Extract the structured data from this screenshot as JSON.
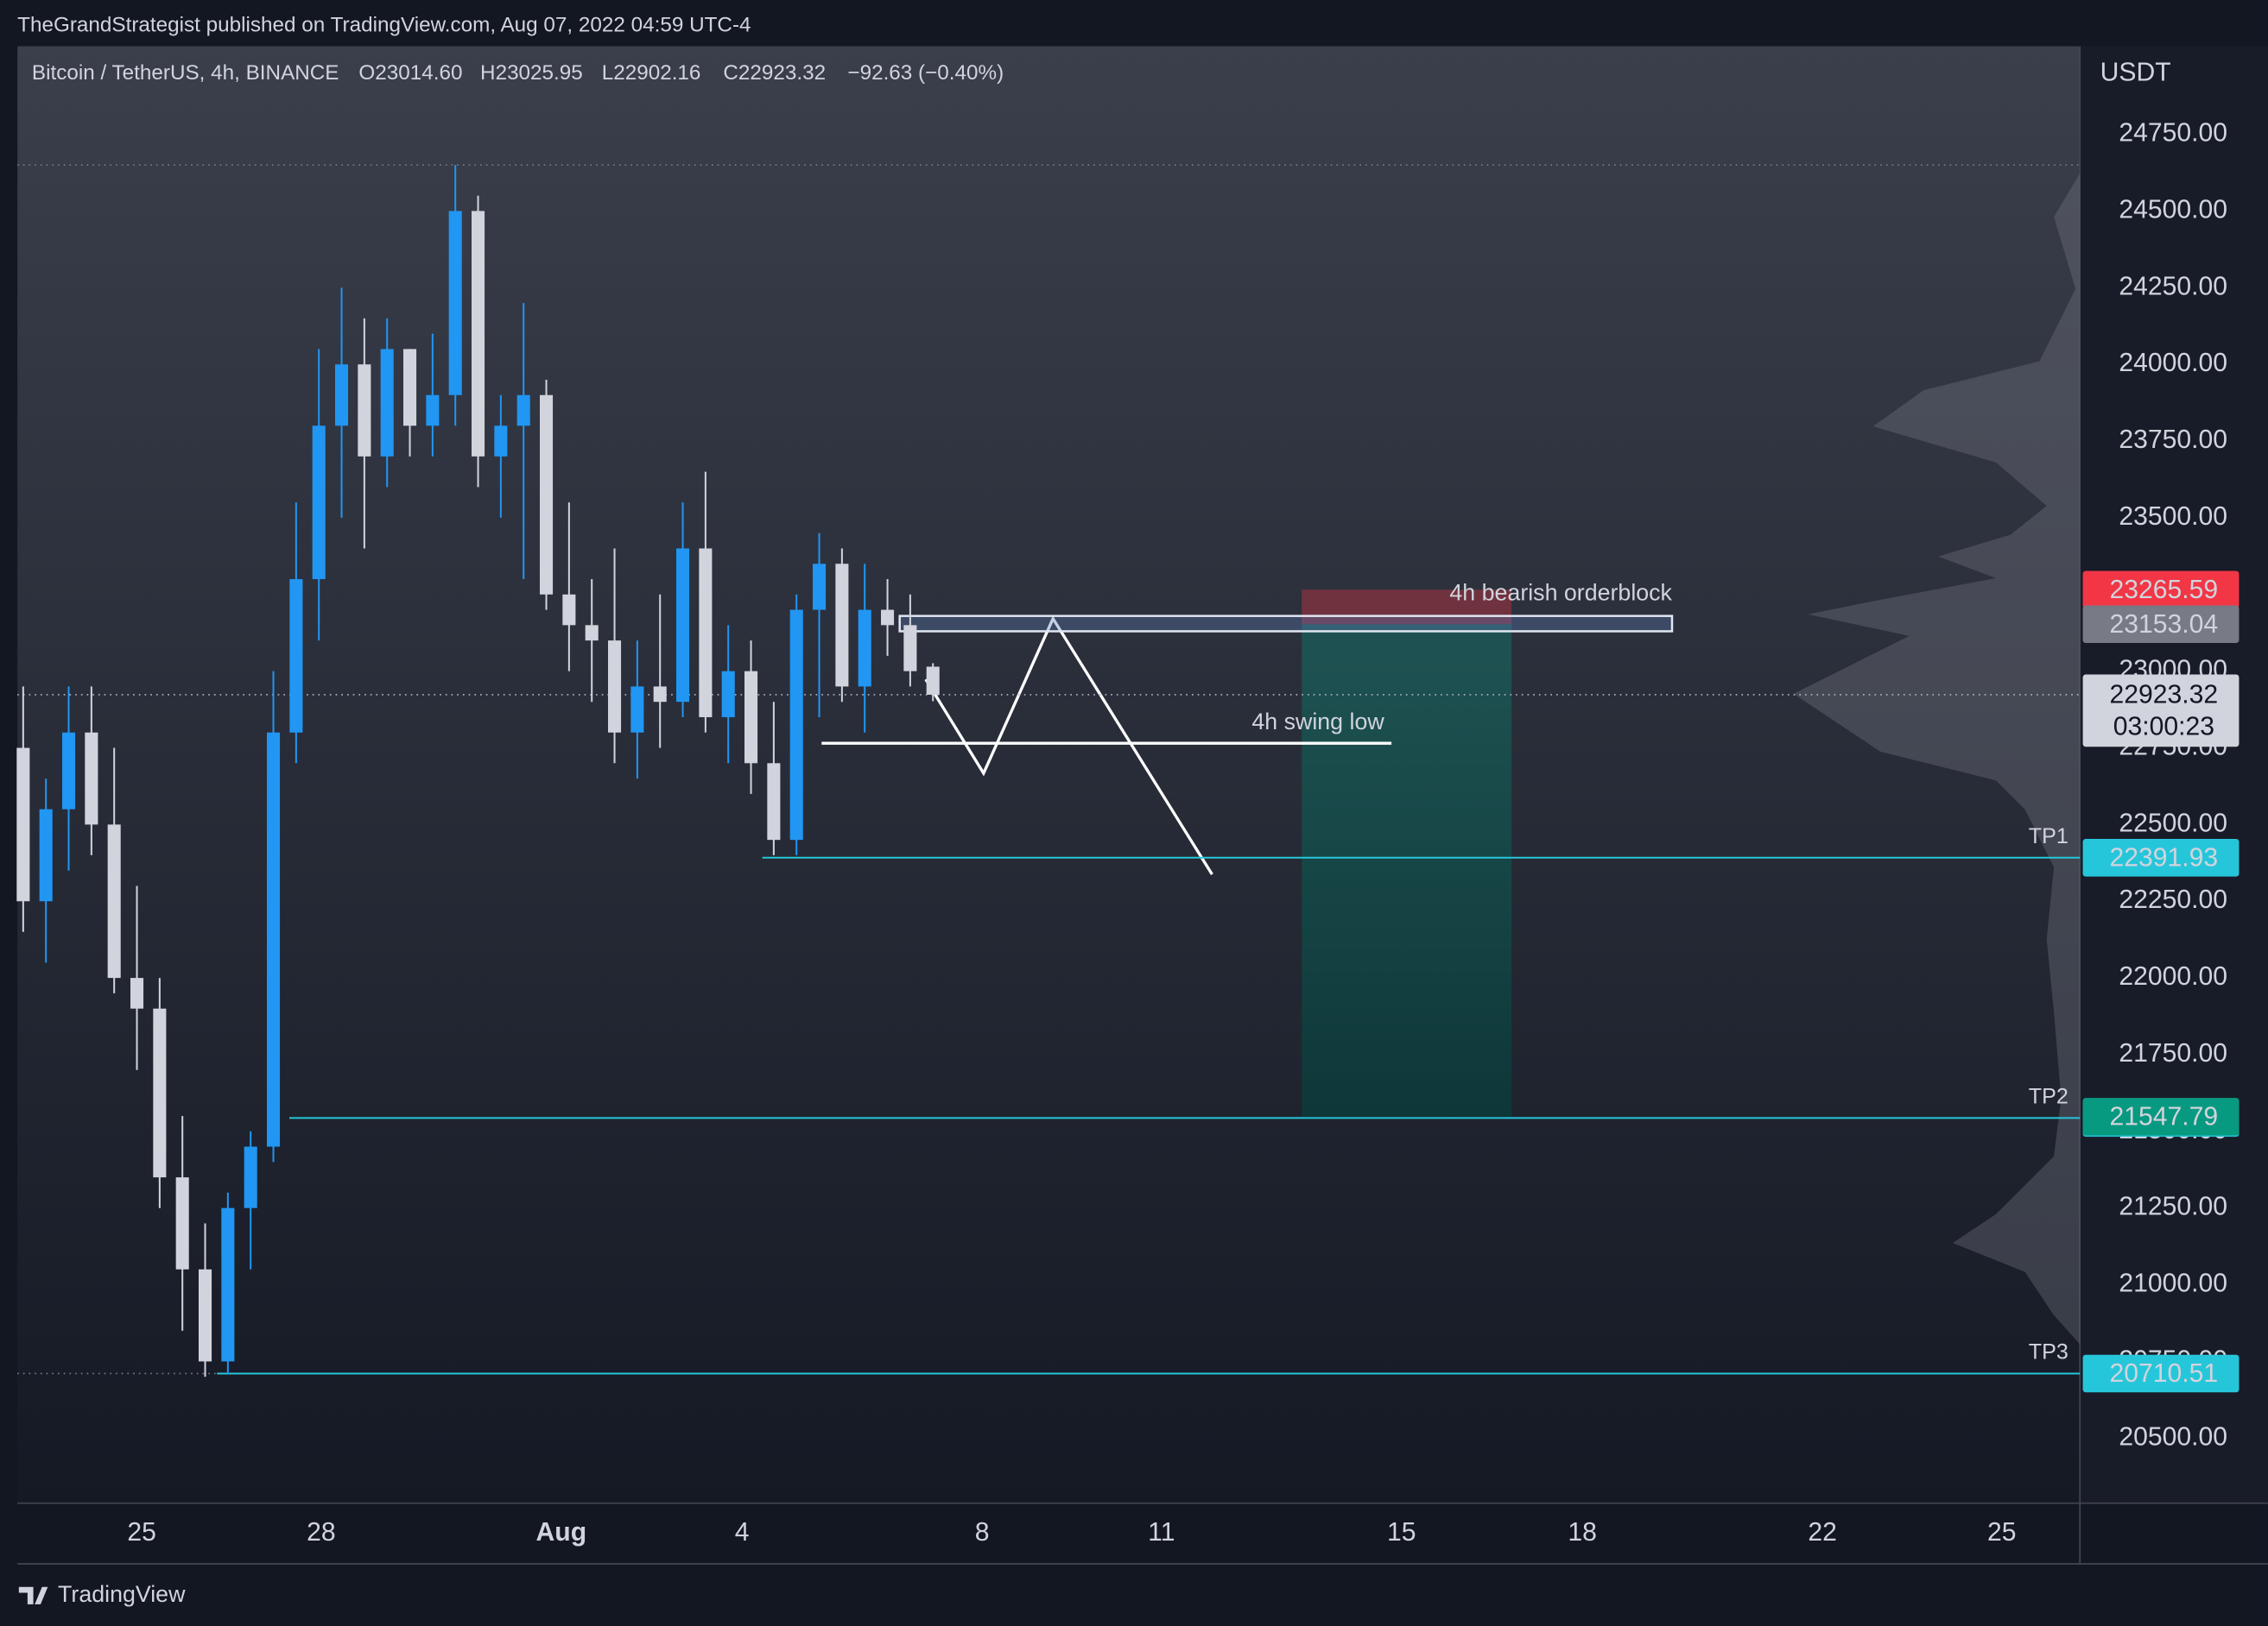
{
  "header": {
    "published": "TheGrandStrategist published on TradingView.com, Aug 07, 2022 04:59 UTC-4"
  },
  "footer": {
    "brand": "TradingView"
  },
  "chart_data": {
    "type": "candlestick",
    "symbol": "Bitcoin / TetherUS, 4h, BINANCE",
    "ohlc": [
      {
        "value": 23014.6,
        "label": "O23014.60"
      },
      {
        "value": 23025.95,
        "label": "H23025.95"
      },
      {
        "value": 22902.16,
        "label": "L22902.16"
      },
      {
        "value": 22923.32,
        "label": "C22923.32"
      }
    ],
    "change": {
      "value": -92.63,
      "label": "−92.63 (−0.40%)"
    },
    "currency": "USDT",
    "candles": {
      "open": [
        22750,
        22250,
        22550,
        22800,
        22500,
        22000,
        21900,
        21350,
        21050,
        20750,
        21250,
        21450,
        22800,
        23300,
        23800,
        24000,
        23700,
        24050,
        23800,
        23900,
        24500,
        23700,
        23800,
        23900,
        23250,
        23150,
        23100,
        22800,
        22950,
        22900,
        23400,
        22850,
        23000,
        22700,
        22450,
        23200,
        23350,
        22950,
        23200,
        23150,
        23014.6
      ],
      "high": [
        22950,
        22650,
        22950,
        22950,
        22750,
        22300,
        22000,
        21550,
        21200,
        21300,
        21500,
        23000,
        23550,
        24050,
        24250,
        24150,
        24150,
        24050,
        24100,
        24650,
        24550,
        23900,
        24200,
        23950,
        23550,
        23300,
        23400,
        23100,
        23250,
        23550,
        23650,
        23150,
        23100,
        22900,
        23250,
        23450,
        23400,
        23350,
        23300,
        23250,
        23025.95
      ],
      "low": [
        22150,
        22050,
        22350,
        22400,
        21950,
        21700,
        21250,
        20850,
        20700,
        20710,
        21050,
        21400,
        22700,
        23100,
        23500,
        23400,
        23600,
        23700,
        23700,
        23800,
        23600,
        23500,
        23300,
        23200,
        23000,
        22900,
        22700,
        22650,
        22750,
        22850,
        22800,
        22700,
        22600,
        22400,
        22400,
        22850,
        22900,
        22800,
        23050,
        22950,
        22902.16
      ],
      "close": [
        22250,
        22550,
        22800,
        22500,
        22000,
        21900,
        21350,
        21050,
        20750,
        21250,
        21450,
        22800,
        23300,
        23800,
        24000,
        23700,
        24050,
        23800,
        23900,
        24500,
        23700,
        23800,
        23900,
        23250,
        23150,
        23100,
        22800,
        22950,
        22900,
        23400,
        22850,
        23000,
        22700,
        22450,
        23200,
        23350,
        22950,
        23200,
        23150,
        23000,
        22923.32
      ]
    },
    "up_color": "#2196f3",
    "down_color": "#d1d4dc",
    "ylim": [
      20288,
      25037
    ],
    "yticks": [
      {
        "value": 20500,
        "label": "20500.00"
      },
      {
        "value": 20750,
        "label": "20750.00"
      },
      {
        "value": 21000,
        "label": "21000.00"
      },
      {
        "value": 21250,
        "label": "21250.00"
      },
      {
        "value": 21500,
        "label": "21500.00"
      },
      {
        "value": 21750,
        "label": "21750.00"
      },
      {
        "value": 22000,
        "label": "22000.00"
      },
      {
        "value": 22250,
        "label": "22250.00"
      },
      {
        "value": 22500,
        "label": "22500.00"
      },
      {
        "value": 22750,
        "label": "22750.00"
      },
      {
        "value": 23000,
        "label": "23000.00"
      },
      {
        "value": 23250,
        "label": "23250.00"
      },
      {
        "value": 23500,
        "label": "23500.00"
      },
      {
        "value": 23750,
        "label": "23750.00"
      },
      {
        "value": 24000,
        "label": "24000.00"
      },
      {
        "value": 24250,
        "label": "24250.00"
      },
      {
        "value": 24500,
        "label": "24500.00"
      },
      {
        "value": 24750,
        "label": "24750.00"
      }
    ],
    "x_labels": [
      "25",
      "28",
      "Aug",
      "4",
      "8",
      "11",
      "15",
      "18",
      "22",
      "25"
    ],
    "levels": [
      {
        "name": "TP1",
        "value": 22391.93,
        "color": "#26c6da"
      },
      {
        "name": "TP2",
        "value": 21543.53,
        "color": "#26c6da"
      },
      {
        "name": "TP3",
        "value": 20710.51,
        "color": "#26c6da"
      }
    ],
    "price_tags": [
      {
        "value": 23265.59,
        "color": "#f23645"
      },
      {
        "value": 23153.04,
        "color": "#787b86"
      },
      {
        "value": 21547.79,
        "color": "#089981"
      }
    ],
    "last_price": {
      "value": 22923.32,
      "countdown": "03:00:23"
    },
    "orderblock": {
      "label": "4h bearish orderblock",
      "top": 23180,
      "bottom": 23130
    },
    "swing_low": {
      "label": "4h swing low",
      "value": 22765
    }
  }
}
